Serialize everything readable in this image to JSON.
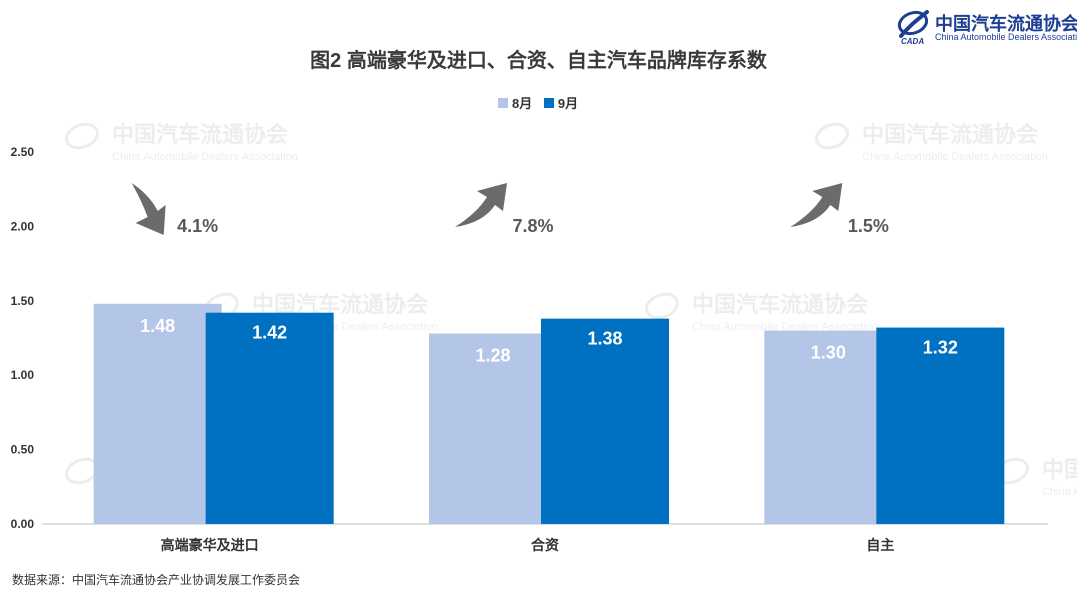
{
  "logo": {
    "name_cn": "中国汽车流通协会",
    "name_en": "China Automobile Dealers Association",
    "mark_text": "CADA"
  },
  "title": "图2  高端豪华及进口、合资、自主汽车品牌库存系数",
  "source": "数据来源：中国汽车流通协会产业协调发展工作委员会",
  "colors": {
    "series_8": "#b4c6e7",
    "series_9": "#0070c0",
    "arrow": "#6b6b6b",
    "brand": "#1c3f94"
  },
  "chart_data": {
    "type": "bar",
    "categories": [
      "高端豪华及进口",
      "合资",
      "自主"
    ],
    "series": [
      {
        "name": "8月",
        "values": [
          1.48,
          1.28,
          1.3
        ]
      },
      {
        "name": "9月",
        "values": [
          1.42,
          1.38,
          1.32
        ]
      }
    ],
    "value_labels": [
      [
        "1.48",
        "1.28",
        "1.30"
      ],
      [
        "1.42",
        "1.38",
        "1.32"
      ]
    ],
    "ylim": [
      0,
      2.5
    ],
    "yticks": [
      "0.00",
      "0.50",
      "1.00",
      "1.50",
      "2.00",
      "2.50"
    ],
    "legend_position": "top-center",
    "grid": false,
    "annotations": [
      {
        "category": "高端豪华及进口",
        "text": "4.1%",
        "direction": "down"
      },
      {
        "category": "合资",
        "text": "7.8%",
        "direction": "up"
      },
      {
        "category": "自主",
        "text": "1.5%",
        "direction": "up"
      }
    ]
  }
}
